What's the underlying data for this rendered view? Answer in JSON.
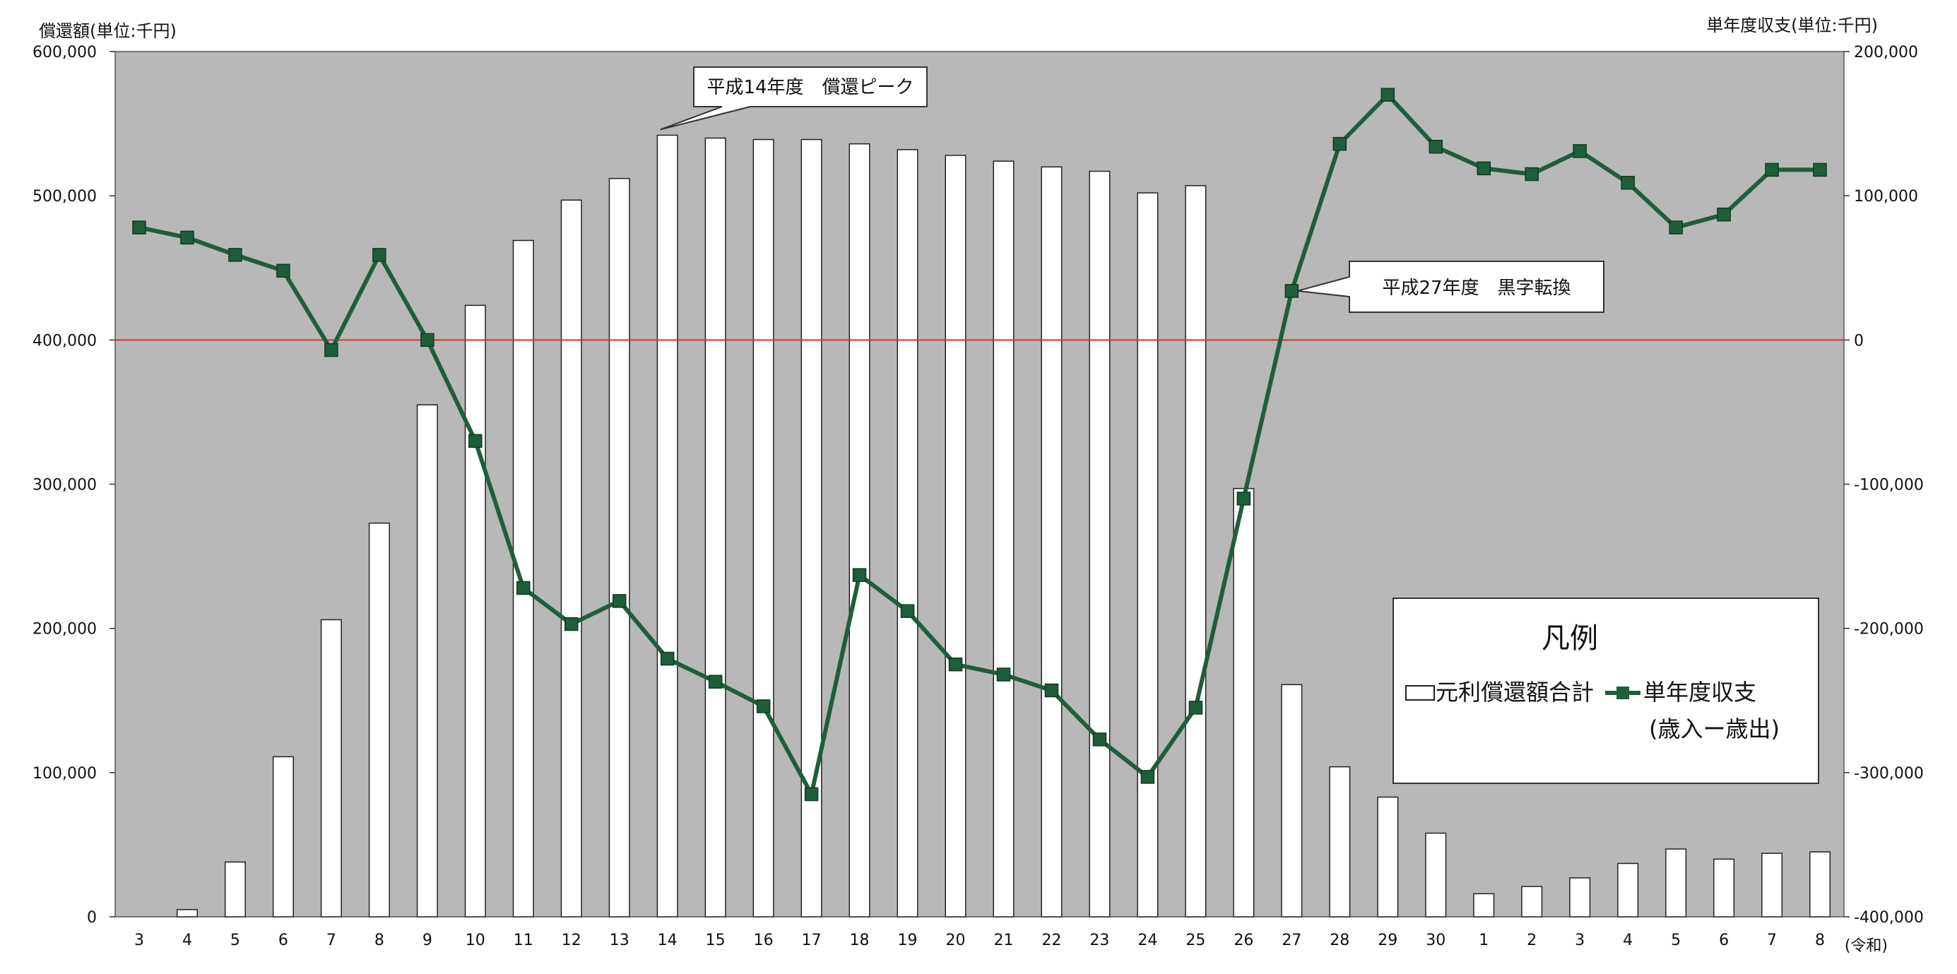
{
  "chart_data": {
    "type": "bar+line",
    "title": "",
    "categories": [
      "3",
      "4",
      "5",
      "6",
      "7",
      "8",
      "9",
      "10",
      "11",
      "12",
      "13",
      "14",
      "15",
      "16",
      "17",
      "18",
      "19",
      "20",
      "21",
      "22",
      "23",
      "24",
      "25",
      "26",
      "27",
      "28",
      "29",
      "30",
      "1",
      "2",
      "3",
      "4",
      "5",
      "6",
      "7",
      "8"
    ],
    "x_suffix": "(令和)",
    "left_axis": {
      "label": "償還額(単位:千円)",
      "ylim": [
        0,
        600000
      ],
      "ticks": [
        "0",
        "100,000",
        "200,000",
        "300,000",
        "400,000",
        "500,000",
        "600,000"
      ]
    },
    "right_axis": {
      "label": "単年度収支(単位:千円)",
      "ylim": [
        -400000,
        200000
      ],
      "ticks": [
        "-400,000",
        "-300,000",
        "-200,000",
        "-100,000",
        "0",
        "100,000",
        "200,000"
      ]
    },
    "series": [
      {
        "name": "元利償還額合計",
        "kind": "bar",
        "axis": "left",
        "values": [
          0,
          5000,
          38000,
          111000,
          206000,
          273000,
          355000,
          424000,
          469000,
          497000,
          512000,
          542000,
          540000,
          539000,
          539000,
          536000,
          532000,
          528000,
          524000,
          520000,
          517000,
          502000,
          507000,
          297000,
          161000,
          104000,
          83000,
          58000,
          16000,
          21000,
          27000,
          37000,
          47000,
          40000,
          44000,
          45000
        ]
      },
      {
        "name": "単年度収支",
        "kind": "line",
        "axis": "right",
        "values": [
          78000,
          71000,
          59000,
          48000,
          -7000,
          59000,
          0,
          -70000,
          -172000,
          -197000,
          -181000,
          -221000,
          -237000,
          -254000,
          -315000,
          -163000,
          -188000,
          -225000,
          -232000,
          -243000,
          -277000,
          -303000,
          -255000,
          -110000,
          34000,
          136000,
          170000,
          134000,
          119000,
          115000,
          131000,
          109000,
          78000,
          87000,
          118000,
          118000
        ]
      }
    ],
    "annotations": [
      {
        "text": "平成14年度　償還ピーク",
        "category_index": 11
      },
      {
        "text": "平成27年度　黒字転換",
        "category_index": 24
      }
    ],
    "legend": {
      "title": "凡例",
      "bar_label": "元利償還額合計",
      "line_label": "単年度収支",
      "line_note": "(歳入ー歳出)",
      "position": "bottom-right"
    },
    "colors": {
      "plot_background": "#b8b8b8",
      "bar_fill": "#ffffff",
      "line": "#1f5e3a",
      "marker": "#1f5e3a",
      "zero_line": "#d9342b"
    },
    "grid": false
  }
}
